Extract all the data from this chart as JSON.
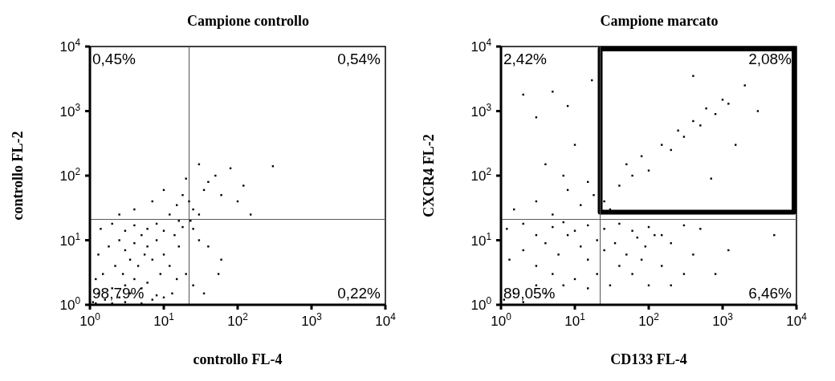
{
  "chart_data": [
    {
      "type": "scatter",
      "title": "Campione controllo",
      "xlabel": "controllo FL-4",
      "ylabel": "controllo FL-2",
      "marker": "square",
      "log": "xy",
      "xlim": [
        1,
        10000
      ],
      "ylim": [
        1,
        10000
      ],
      "xticks": [
        {
          "value": 1,
          "label": "10$^{0}$"
        },
        {
          "value": 10,
          "label": "10$^{1}$"
        },
        {
          "value": 100,
          "label": "10$^{2}$"
        },
        {
          "value": 1000,
          "label": "10$^{3}$"
        },
        {
          "value": 10000,
          "label": "10$^{4}$"
        }
      ],
      "yticks": [
        {
          "value": 1,
          "label": "10$^{0}$"
        },
        {
          "value": 10,
          "label": "10$^{1}$"
        },
        {
          "value": 100,
          "label": "10$^{2}$"
        },
        {
          "value": 1000,
          "label": "10$^{3}$"
        },
        {
          "value": 10000,
          "label": "10$^{4}$"
        }
      ],
      "ref_lines": [
        {
          "axis": "x",
          "value": 22,
          "color": "#555555"
        },
        {
          "axis": "y",
          "value": 21,
          "color": "#555555"
        }
      ],
      "annotations": [
        "0,45%",
        "0,54%",
        "98,79%",
        "0,22%"
      ],
      "series": [
        {
          "color": "#000000",
          "x": [
            1.1,
            1.3,
            1.6,
            2,
            2.5,
            3,
            3.5,
            4,
            5,
            6,
            8,
            1.2,
            1.5,
            2.2,
            2.8,
            3.5,
            4.5,
            5.5,
            7,
            9,
            1.3,
            1.8,
            2.5,
            3,
            4,
            5,
            6,
            8,
            10,
            12,
            1.4,
            2,
            3,
            4,
            6,
            8,
            10,
            14,
            16,
            18,
            1.2,
            2,
            3,
            5,
            7,
            10,
            13,
            15,
            20,
            12,
            15,
            18,
            10,
            22,
            25,
            30,
            35,
            40,
            30,
            50,
            60,
            80,
            100,
            120,
            150,
            300,
            25,
            30,
            40,
            60,
            55,
            25,
            35,
            4,
            2.5,
            7,
            20,
            16,
            23
          ],
          "values": [
            1.1,
            1.5,
            1.2,
            1.8,
            1.3,
            2,
            1.5,
            2.5,
            1.8,
            2.2,
            1.4,
            2.5,
            3,
            4,
            3,
            5,
            4,
            6,
            5,
            3,
            6,
            8,
            10,
            7,
            9,
            12,
            8,
            10,
            6,
            4,
            15,
            18,
            14,
            17,
            15,
            18,
            14,
            12,
            8,
            16,
            1.05,
            1.05,
            1.1,
            1.05,
            1.2,
            1.3,
            1.5,
            2.5,
            3,
            25,
            35,
            50,
            60,
            40,
            30,
            25,
            60,
            80,
            150,
            100,
            50,
            130,
            40,
            70,
            25,
            140,
            15,
            10,
            8,
            5,
            3,
            2,
            1.5,
            30,
            25,
            40,
            90,
            20,
            20
          ]
        }
      ]
    },
    {
      "type": "scatter",
      "title": "Campione marcato",
      "xlabel": "CD133 FL-4",
      "ylabel": "CXCR4 FL-2",
      "marker": "square",
      "log": "xy",
      "xlim": [
        1,
        10000
      ],
      "ylim": [
        1,
        10000
      ],
      "xticks": [
        {
          "value": 1,
          "label": "10$^{0}$"
        },
        {
          "value": 10,
          "label": "10$^{1}$"
        },
        {
          "value": 100,
          "label": "10$^{2}$"
        },
        {
          "value": 1000,
          "label": "10$^{3}$"
        },
        {
          "value": 10000,
          "label": "10$^{4}$"
        }
      ],
      "yticks": [
        {
          "value": 1,
          "label": "10$^{0}$"
        },
        {
          "value": 10,
          "label": "10$^{1}$"
        },
        {
          "value": 100,
          "label": "10$^{2}$"
        },
        {
          "value": 1000,
          "label": "10$^{3}$"
        },
        {
          "value": 10000,
          "label": "10$^{4}$"
        }
      ],
      "ref_lines": [
        {
          "axis": "x",
          "value": 22,
          "color": "#555555"
        },
        {
          "axis": "y",
          "value": 21,
          "color": "#555555"
        }
      ],
      "annotations": [
        "2,42%",
        "2,08%",
        "89,05%",
        "6,46%"
      ],
      "series": [
        {
          "color": "#000000",
          "x": [
            1.1,
            1.5,
            2,
            3,
            4,
            5,
            7,
            10,
            15,
            20,
            30,
            40,
            60,
            80,
            100,
            150,
            200,
            300,
            1.3,
            2,
            3,
            4,
            6,
            8,
            12,
            15,
            20,
            25,
            35,
            50,
            70,
            90,
            120,
            200,
            400,
            800,
            1.2,
            2,
            3,
            5,
            7,
            10,
            15,
            25,
            40,
            60,
            100,
            150,
            300,
            500,
            1.5,
            3,
            5,
            8,
            12,
            15,
            18,
            25,
            30,
            40,
            50,
            60,
            80,
            100,
            150,
            200,
            250,
            300,
            400,
            500,
            600,
            800,
            1000,
            1200,
            2000,
            3000,
            400,
            1500,
            700,
            5000,
            1200,
            3,
            5,
            2,
            8,
            10,
            4,
            7,
            17
          ],
          "values": [
            1.2,
            1.5,
            1.1,
            2,
            1.5,
            3,
            2,
            2.5,
            1.8,
            3,
            2,
            4,
            3,
            5,
            2,
            4,
            2,
            3,
            5,
            7,
            4,
            9,
            6,
            12,
            8,
            5,
            10,
            7,
            9,
            6,
            11,
            8,
            12,
            9,
            6,
            3,
            15,
            18,
            12,
            16,
            19,
            14,
            17,
            15,
            18,
            14,
            16,
            12,
            17,
            15,
            30,
            40,
            25,
            60,
            35,
            80,
            50,
            40,
            30,
            70,
            150,
            100,
            200,
            120,
            300,
            250,
            500,
            400,
            700,
            600,
            1100,
            900,
            1500,
            1300,
            2500,
            1000,
            3500,
            300,
            90,
            12,
            7,
            800,
            2000,
            1800,
            1200,
            300,
            150,
            100,
            3000
          ]
        }
      ]
    }
  ]
}
